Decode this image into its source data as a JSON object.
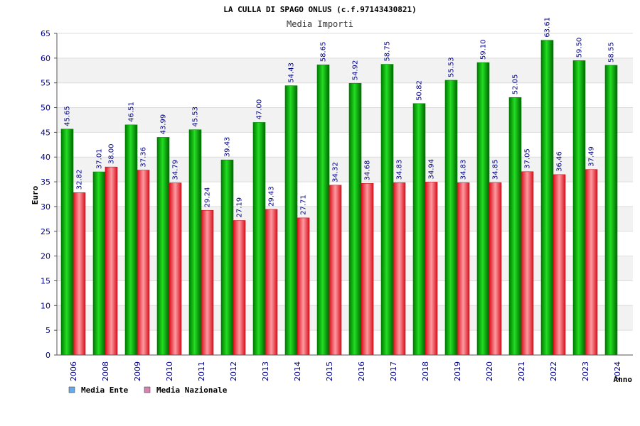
{
  "chart_data": {
    "type": "bar",
    "title": "LA CULLA DI SPAGO ONLUS (c.f.97143430821)",
    "subtitle": "Media Importi",
    "xlabel": "Anno",
    "ylabel": "Euro",
    "ylim": [
      0,
      65
    ],
    "yticks": [
      0,
      5,
      10,
      15,
      20,
      25,
      30,
      35,
      40,
      45,
      50,
      55,
      60,
      65
    ],
    "grid": true,
    "legend_position": "bottom-left",
    "categories": [
      "2006",
      "2008",
      "2009",
      "2010",
      "2011",
      "2012",
      "2013",
      "2014",
      "2015",
      "2016",
      "2017",
      "2018",
      "2019",
      "2020",
      "2021",
      "2022",
      "2023",
      "2024"
    ],
    "series": [
      {
        "name": "Media Ente",
        "color": "#00b000",
        "legend_color": "#6aa8e8",
        "values": [
          45.65,
          37.01,
          46.51,
          43.99,
          45.53,
          39.43,
          47.0,
          54.43,
          58.65,
          54.92,
          58.75,
          50.82,
          55.53,
          59.1,
          52.05,
          63.61,
          59.5,
          58.55
        ],
        "labels": [
          "45.65",
          "37.01",
          "46.51",
          "43.99",
          "45.53",
          "39.43",
          "47.00",
          "54.43",
          "58.65",
          "54.92",
          "58.75",
          "50.82",
          "55.53",
          "59.10",
          "52.05",
          "63.61",
          "59.50",
          "58.55"
        ]
      },
      {
        "name": "Media Nazionale",
        "color": "#e8202a",
        "legend_color": "#d882b0",
        "values": [
          32.82,
          38.0,
          37.36,
          34.79,
          29.24,
          27.19,
          29.43,
          27.71,
          34.32,
          34.68,
          34.83,
          34.94,
          34.83,
          34.85,
          37.05,
          36.46,
          37.49,
          null
        ],
        "labels": [
          "32.82",
          "38.00",
          "37.36",
          "34.79",
          "29.24",
          "27.19",
          "29.43",
          "27.71",
          "34.32",
          "34.68",
          "34.83",
          "34.94",
          "34.83",
          "34.85",
          "37.05",
          "36.46",
          "37.49",
          null
        ]
      }
    ]
  }
}
